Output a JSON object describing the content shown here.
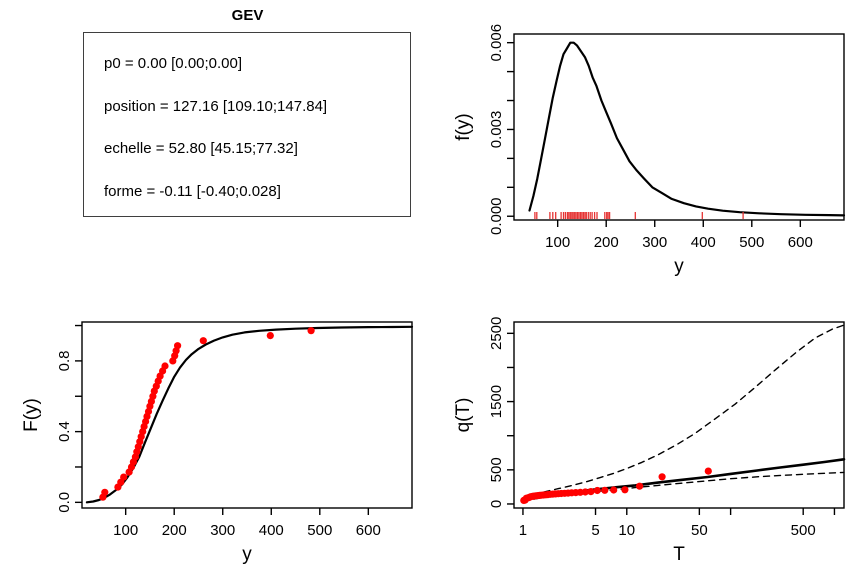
{
  "figure": {
    "title": "GEV"
  },
  "params_panel": {
    "title": "GEV",
    "lines": [
      "p0 = 0.00 [0.00;0.00]",
      "position = 127.16 [109.10;147.84]",
      "echelle = 52.80 [45.15;77.32]",
      "forme = -0.11 [-0.40;0.028]"
    ]
  },
  "colors": {
    "curve": "#000000",
    "frame": "#000000",
    "data_points": "#ff0000",
    "rug": "#e63333",
    "confidence_dashed": "#000000",
    "background": "#ffffff"
  },
  "chart_data": [
    {
      "id": "params",
      "type": "table",
      "title": "GEV",
      "rows": [
        {
          "param": "p0",
          "estimate": "0.00",
          "ci_low": "0.00",
          "ci_high": "0.00"
        },
        {
          "param": "position",
          "estimate": "127.16",
          "ci_low": "109.10",
          "ci_high": "147.84"
        },
        {
          "param": "echelle",
          "estimate": "52.80",
          "ci_low": "45.15",
          "ci_high": "77.32"
        },
        {
          "param": "forme",
          "estimate": "-0.11",
          "ci_low": "-0.40",
          "ci_high": "0.028"
        }
      ]
    },
    {
      "id": "density",
      "type": "line",
      "title": "",
      "xlabel": "y",
      "ylabel": "f(y)",
      "xscale": "linear",
      "xrange": [
        10,
        690
      ],
      "yrange": [
        -0.00013,
        0.0063
      ],
      "xticks": [
        {
          "v": 100,
          "label": "100"
        },
        {
          "v": 200,
          "label": "200"
        },
        {
          "v": 300,
          "label": "300"
        },
        {
          "v": 400,
          "label": "400"
        },
        {
          "v": 500,
          "label": "500"
        },
        {
          "v": 600,
          "label": "600"
        }
      ],
      "yticks": [
        {
          "v": 0,
          "label": "0.000"
        },
        {
          "v": 0.001,
          "label": ""
        },
        {
          "v": 0.002,
          "label": ""
        },
        {
          "v": 0.003,
          "label": "0.003"
        },
        {
          "v": 0.004,
          "label": ""
        },
        {
          "v": 0.005,
          "label": ""
        },
        {
          "v": 0.006,
          "label": "0.006"
        }
      ],
      "series": [
        {
          "kind": "line",
          "name": "fitted-density",
          "color": "#000000",
          "width": 2.2,
          "dash": "",
          "points": [
            [
              42,
              0.0002
            ],
            [
              50,
              0.0007
            ],
            [
              58,
              0.0013
            ],
            [
              66,
              0.002
            ],
            [
              74,
              0.0027
            ],
            [
              82,
              0.0034
            ],
            [
              90,
              0.0041
            ],
            [
              98,
              0.0047
            ],
            [
              105,
              0.0052
            ],
            [
              112,
              0.0056
            ],
            [
              119,
              0.0058
            ],
            [
              126,
              0.006
            ],
            [
              133,
              0.006
            ],
            [
              140,
              0.0059
            ],
            [
              148,
              0.0057
            ],
            [
              156,
              0.0055
            ],
            [
              164,
              0.0052
            ],
            [
              172,
              0.0048
            ],
            [
              180,
              0.0045
            ],
            [
              190,
              0.004
            ],
            [
              200,
              0.0036
            ],
            [
              210,
              0.0032
            ],
            [
              222,
              0.0027
            ],
            [
              235,
              0.0023
            ],
            [
              248,
              0.0019
            ],
            [
              262,
              0.0016
            ],
            [
              278,
              0.0013
            ],
            [
              295,
              0.001
            ],
            [
              315,
              0.0008
            ],
            [
              335,
              0.0006
            ],
            [
              360,
              0.00045
            ],
            [
              385,
              0.00034
            ],
            [
              410,
              0.00026
            ],
            [
              440,
              0.00019
            ],
            [
              475,
              0.00014
            ],
            [
              515,
              0.0001
            ],
            [
              560,
              7e-05
            ],
            [
              610,
              5e-05
            ],
            [
              660,
              4e-05
            ],
            [
              690,
              3e-05
            ]
          ]
        },
        {
          "kind": "rug",
          "name": "observations-rug",
          "color": "#e63333",
          "width": 1.3,
          "values": [
            53,
            57,
            84,
            90,
            96,
            107,
            112,
            116,
            120,
            123,
            126,
            129,
            132,
            135,
            138,
            141,
            144,
            147,
            150,
            153,
            156,
            159,
            163,
            167,
            171,
            176,
            181,
            197,
            201,
            204,
            207,
            260,
            398,
            482
          ]
        }
      ]
    },
    {
      "id": "cdf",
      "type": "line+scatter",
      "title": "",
      "xlabel": "y",
      "ylabel": "F(y)",
      "xscale": "linear",
      "xrange": [
        10,
        690
      ],
      "yrange": [
        -0.032,
        1.02
      ],
      "xticks": [
        {
          "v": 100,
          "label": "100"
        },
        {
          "v": 200,
          "label": "200"
        },
        {
          "v": 300,
          "label": "300"
        },
        {
          "v": 400,
          "label": "400"
        },
        {
          "v": 500,
          "label": "500"
        },
        {
          "v": 600,
          "label": "600"
        }
      ],
      "yticks": [
        {
          "v": 0,
          "label": "0.0"
        },
        {
          "v": 0.2,
          "label": ""
        },
        {
          "v": 0.4,
          "label": "0.4"
        },
        {
          "v": 0.6,
          "label": ""
        },
        {
          "v": 0.8,
          "label": "0.8"
        },
        {
          "v": 1.0,
          "label": ""
        }
      ],
      "series": [
        {
          "kind": "line",
          "name": "fitted-cdf",
          "color": "#000000",
          "width": 2.2,
          "dash": "",
          "points": [
            [
              20,
              0.0
            ],
            [
              33,
              0.005
            ],
            [
              45,
              0.013
            ],
            [
              57,
              0.027
            ],
            [
              68,
              0.045
            ],
            [
              80,
              0.07
            ],
            [
              92,
              0.1
            ],
            [
              104,
              0.143
            ],
            [
              116,
              0.195
            ],
            [
              128,
              0.258
            ],
            [
              140,
              0.34
            ],
            [
              152,
              0.42
            ],
            [
              164,
              0.5
            ],
            [
              176,
              0.575
            ],
            [
              188,
              0.645
            ],
            [
              200,
              0.71
            ],
            [
              212,
              0.762
            ],
            [
              224,
              0.805
            ],
            [
              236,
              0.838
            ],
            [
              250,
              0.868
            ],
            [
              265,
              0.893
            ],
            [
              282,
              0.915
            ],
            [
              300,
              0.933
            ],
            [
              320,
              0.948
            ],
            [
              345,
              0.961
            ],
            [
              375,
              0.97
            ],
            [
              410,
              0.977
            ],
            [
              450,
              0.982
            ],
            [
              495,
              0.986
            ],
            [
              545,
              0.989
            ],
            [
              600,
              0.991
            ],
            [
              650,
              0.992
            ],
            [
              690,
              0.993
            ]
          ]
        },
        {
          "kind": "scatter",
          "name": "empirical-cdf-points",
          "color": "#ff0000",
          "r": 3.6,
          "points": [
            [
              53,
              0.029
            ],
            [
              57,
              0.057
            ],
            [
              84,
              0.086
            ],
            [
              90,
              0.114
            ],
            [
              96,
              0.143
            ],
            [
              107,
              0.171
            ],
            [
              112,
              0.2
            ],
            [
              116,
              0.229
            ],
            [
              120,
              0.257
            ],
            [
              123,
              0.286
            ],
            [
              126,
              0.314
            ],
            [
              129,
              0.343
            ],
            [
              132,
              0.371
            ],
            [
              135,
              0.4
            ],
            [
              138,
              0.429
            ],
            [
              141,
              0.457
            ],
            [
              144,
              0.486
            ],
            [
              147,
              0.514
            ],
            [
              150,
              0.543
            ],
            [
              153,
              0.571
            ],
            [
              156,
              0.6
            ],
            [
              159,
              0.629
            ],
            [
              163,
              0.657
            ],
            [
              167,
              0.686
            ],
            [
              171,
              0.714
            ],
            [
              176,
              0.743
            ],
            [
              181,
              0.771
            ],
            [
              197,
              0.8
            ],
            [
              201,
              0.829
            ],
            [
              204,
              0.857
            ],
            [
              207,
              0.886
            ],
            [
              260,
              0.914
            ],
            [
              398,
              0.943
            ],
            [
              482,
              0.971
            ]
          ]
        }
      ]
    },
    {
      "id": "return_level",
      "type": "line+scatter",
      "title": "",
      "xlabel": "T",
      "ylabel": "q(T)",
      "xscale": "log",
      "xrange": [
        0.82,
        1236
      ],
      "yrange": [
        -59,
        2666
      ],
      "xticks": [
        {
          "v": 1,
          "label": "1"
        },
        {
          "v": 5,
          "label": "5"
        },
        {
          "v": 10,
          "label": "10"
        },
        {
          "v": 50,
          "label": "50"
        },
        {
          "v": 100,
          "label": ""
        },
        {
          "v": 500,
          "label": "500"
        },
        {
          "v": 1000,
          "label": ""
        }
      ],
      "yticks": [
        {
          "v": 0,
          "label": "0"
        },
        {
          "v": 500,
          "label": "500"
        },
        {
          "v": 1000,
          "label": ""
        },
        {
          "v": 1500,
          "label": "1500"
        },
        {
          "v": 2000,
          "label": ""
        },
        {
          "v": 2500,
          "label": "2500"
        }
      ],
      "series": [
        {
          "kind": "line",
          "name": "upper-confidence-bound",
          "color": "#000000",
          "width": 1.4,
          "dash": "6,5",
          "points": [
            [
              1,
              80
            ],
            [
              1.3,
              140
            ],
            [
              1.7,
              185
            ],
            [
              2.2,
              225
            ],
            [
              3,
              272
            ],
            [
              4,
              322
            ],
            [
              5.5,
              385
            ],
            [
              7.5,
              450
            ],
            [
              10,
              520
            ],
            [
              14,
              610
            ],
            [
              20,
              720
            ],
            [
              30,
              865
            ],
            [
              45,
              1030
            ],
            [
              70,
              1240
            ],
            [
              110,
              1460
            ],
            [
              170,
              1700
            ],
            [
              270,
              1965
            ],
            [
              420,
              2210
            ],
            [
              650,
              2430
            ],
            [
              950,
              2560
            ],
            [
              1236,
              2620
            ]
          ]
        },
        {
          "kind": "line",
          "name": "lower-confidence-bound",
          "color": "#000000",
          "width": 1.4,
          "dash": "6,5",
          "points": [
            [
              1,
              40
            ],
            [
              1.5,
              92
            ],
            [
              2,
              118
            ],
            [
              3,
              148
            ],
            [
              5,
              182
            ],
            [
              8,
              212
            ],
            [
              12,
              240
            ],
            [
              20,
              272
            ],
            [
              35,
              307
            ],
            [
              60,
              340
            ],
            [
              100,
              370
            ],
            [
              200,
              402
            ],
            [
              400,
              428
            ],
            [
              800,
              450
            ],
            [
              1236,
              462
            ]
          ]
        },
        {
          "kind": "line",
          "name": "return-level-curve",
          "color": "#000000",
          "width": 2.6,
          "dash": "",
          "points": [
            [
              1,
              50
            ],
            [
              1.2,
              97
            ],
            [
              1.5,
              122
            ],
            [
              2,
              147
            ],
            [
              3,
              177
            ],
            [
              5,
              213
            ],
            [
              8,
              245
            ],
            [
              12,
              272
            ],
            [
              20,
              313
            ],
            [
              35,
              355
            ],
            [
              60,
              395
            ],
            [
              100,
              440
            ],
            [
              180,
              490
            ],
            [
              300,
              535
            ],
            [
              500,
              575
            ],
            [
              800,
              615
            ],
            [
              1236,
              655
            ]
          ]
        },
        {
          "kind": "scatter",
          "name": "empirical-return-points",
          "color": "#ff0000",
          "r": 3.6,
          "points": [
            [
              1.02,
              53
            ],
            [
              1.05,
              57
            ],
            [
              1.08,
              84
            ],
            [
              1.12,
              90
            ],
            [
              1.15,
              96
            ],
            [
              1.19,
              107
            ],
            [
              1.24,
              112
            ],
            [
              1.28,
              116
            ],
            [
              1.33,
              120
            ],
            [
              1.39,
              123
            ],
            [
              1.45,
              126
            ],
            [
              1.51,
              129
            ],
            [
              1.58,
              132
            ],
            [
              1.66,
              135
            ],
            [
              1.74,
              138
            ],
            [
              1.84,
              141
            ],
            [
              1.94,
              144
            ],
            [
              2.06,
              147
            ],
            [
              2.19,
              150
            ],
            [
              2.34,
              153
            ],
            [
              2.52,
              156
            ],
            [
              2.72,
              159
            ],
            [
              2.95,
              163
            ],
            [
              3.23,
              167
            ],
            [
              3.57,
              171
            ],
            [
              3.99,
              176
            ],
            [
              4.51,
              181
            ],
            [
              5.2,
              197
            ],
            [
              6.14,
              201
            ],
            [
              7.48,
              204
            ],
            [
              9.59,
              207
            ],
            [
              13.3,
              260
            ],
            [
              21.9,
              398
            ],
            [
              61,
              482
            ]
          ]
        }
      ]
    }
  ]
}
